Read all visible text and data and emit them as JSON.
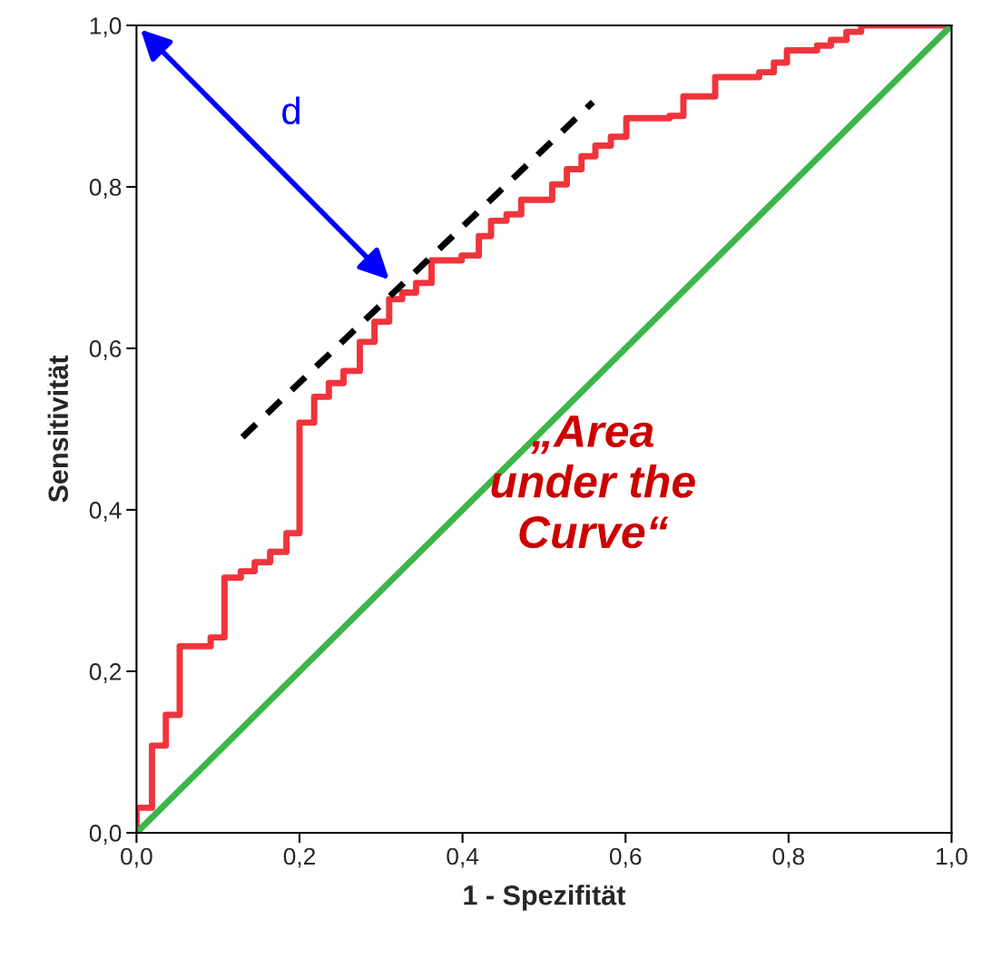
{
  "chart_data": {
    "type": "line",
    "xlabel": "1 - Spezifität",
    "ylabel": "Sensitivität",
    "xlim": [
      0,
      1
    ],
    "ylim": [
      0,
      1
    ],
    "xticks": [
      {
        "value": 0,
        "label": "0,0"
      },
      {
        "value": 0.2,
        "label": "0,2"
      },
      {
        "value": 0.4,
        "label": "0,4"
      },
      {
        "value": 0.6,
        "label": "0,6"
      },
      {
        "value": 0.8,
        "label": "0,8"
      },
      {
        "value": 1,
        "label": "1,0"
      }
    ],
    "yticks": [
      {
        "value": 0,
        "label": "0,0"
      },
      {
        "value": 0.2,
        "label": "0,2"
      },
      {
        "value": 0.4,
        "label": "0,4"
      },
      {
        "value": 0.6,
        "label": "0,6"
      },
      {
        "value": 0.8,
        "label": "0,8"
      },
      {
        "value": 1,
        "label": "1,0"
      }
    ],
    "grid": false,
    "legend": false,
    "marker": "none",
    "series": [
      {
        "type": "step",
        "color": "#f0343c",
        "x": [
          0,
          0,
          0.019,
          0.036,
          0.053,
          0.091,
          0.108,
          0.128,
          0.145,
          0.164,
          0.184,
          0.2,
          0.218,
          0.236,
          0.254,
          0.274,
          0.292,
          0.31,
          0.326,
          0.343,
          0.362,
          0.399,
          0.42,
          0.435,
          0.454,
          0.472,
          0.51,
          0.528,
          0.546,
          0.563,
          0.582,
          0.601,
          0.654,
          0.671,
          0.71,
          0.764,
          0.782,
          0.798,
          0.835,
          0.852,
          0.871,
          0.889,
          1
        ],
        "values": [
          0,
          0.031,
          0.108,
          0.146,
          0.231,
          0.242,
          0.316,
          0.324,
          0.335,
          0.348,
          0.371,
          0.508,
          0.54,
          0.557,
          0.572,
          0.608,
          0.633,
          0.661,
          0.669,
          0.681,
          0.709,
          0.715,
          0.739,
          0.758,
          0.766,
          0.784,
          0.803,
          0.822,
          0.838,
          0.851,
          0.862,
          0.885,
          0.888,
          0.912,
          0.936,
          0.942,
          0.954,
          0.969,
          0.975,
          0.982,
          0.992,
          1,
          1
        ]
      },
      {
        "color": "#3cb64a",
        "x": [
          0,
          1
        ],
        "values": [
          0,
          1
        ]
      },
      {
        "color": "#000000",
        "line_style": "dashed",
        "x": [
          0.13,
          0.56
        ],
        "values": [
          0.49,
          0.905
        ]
      }
    ],
    "annotations": [
      "d",
      "„Area\nunder the\nCurve“"
    ]
  }
}
